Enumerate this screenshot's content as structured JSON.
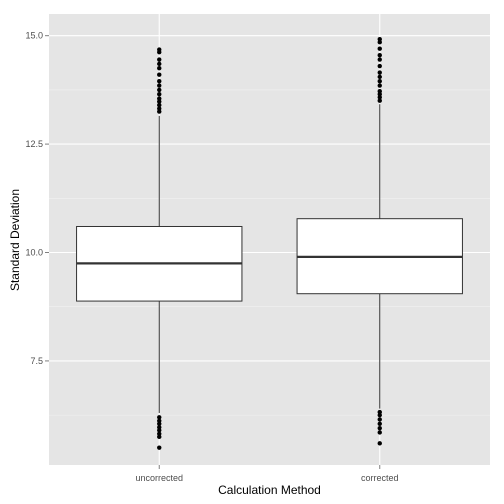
{
  "chart_data": {
    "type": "box",
    "xlabel": "Calculation Method",
    "ylabel": "Standard Deviation",
    "categories": [
      "uncorrected",
      "corrected"
    ],
    "ylim": [
      5.1,
      15.5
    ],
    "yticks": [
      7.5,
      10.0,
      12.5,
      15.0
    ],
    "ytick_labels": [
      "7.5",
      "10.0",
      "12.5",
      "15.0"
    ],
    "grid": true,
    "boxes": [
      {
        "category": "uncorrected",
        "whisker_low": 6.3,
        "q1": 8.88,
        "median": 9.75,
        "q3": 10.6,
        "whisker_high": 13.15,
        "outliers": [
          5.5,
          5.75,
          5.82,
          5.9,
          5.97,
          6.05,
          6.12,
          6.2,
          13.25,
          13.32,
          13.4,
          13.48,
          13.55,
          13.65,
          13.75,
          13.85,
          13.95,
          14.1,
          14.25,
          14.35,
          14.45,
          14.62,
          14.68
        ]
      },
      {
        "category": "corrected",
        "whisker_low": 6.4,
        "q1": 9.05,
        "median": 9.9,
        "q3": 10.78,
        "whisker_high": 13.42,
        "outliers": [
          5.6,
          5.85,
          5.95,
          6.05,
          6.15,
          6.25,
          6.32,
          13.5,
          13.58,
          13.65,
          13.72,
          13.85,
          13.95,
          14.05,
          14.15,
          14.3,
          14.45,
          14.55,
          14.7,
          14.85,
          14.92
        ]
      }
    ],
    "colors": {
      "panel_background": "#e5e5e5",
      "grid_major": "#ffffff",
      "grid_minor": "#f2f2f2",
      "box_fill": "#ffffff",
      "box_stroke": "#333333",
      "outlier": "#000000"
    }
  }
}
